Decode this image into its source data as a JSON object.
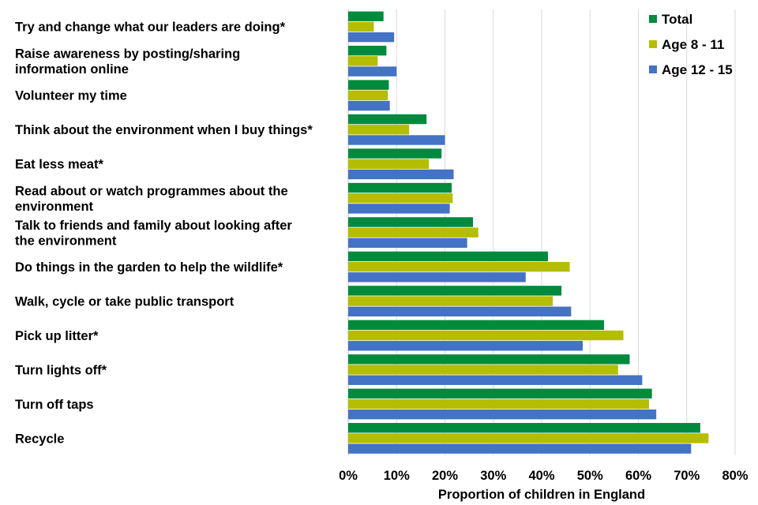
{
  "chart_data": {
    "type": "bar",
    "orientation": "horizontal",
    "title": "",
    "xlabel": "Proportion of children in England",
    "ylabel": "",
    "xlim": [
      0,
      80
    ],
    "x_ticks": [
      "0%",
      "10%",
      "20%",
      "30%",
      "40%",
      "50%",
      "60%",
      "70%",
      "80%"
    ],
    "grid": true,
    "legend_position": "top-right",
    "categories": [
      [
        "Try and change what our leaders are doing*"
      ],
      [
        "Raise awareness by posting/sharing",
        "information online"
      ],
      [
        "Volunteer my time"
      ],
      [
        "Think about the environment when I buy things*"
      ],
      [
        "Eat less meat*"
      ],
      [
        "Read about or watch programmes about the",
        "environment"
      ],
      [
        "Talk to friends and family about looking after",
        "the environment"
      ],
      [
        "Do things in the garden to help the wildlife*"
      ],
      [
        "Walk, cycle or take public transport"
      ],
      [
        "Pick up litter*"
      ],
      [
        "Turn lights off*"
      ],
      [
        "Turn off taps"
      ],
      [
        "Recycle"
      ]
    ],
    "series": [
      {
        "name": "Total",
        "color": "#008a3e",
        "values": [
          7.3,
          7.9,
          8.4,
          16.2,
          19.3,
          21.4,
          25.8,
          41.3,
          44.1,
          52.9,
          58.2,
          62.8,
          72.8
        ]
      },
      {
        "name": "Age 8 - 11",
        "color": "#b5bd00",
        "values": [
          5.3,
          6.1,
          8.2,
          12.6,
          16.7,
          21.6,
          26.9,
          45.8,
          42.3,
          56.9,
          55.8,
          62.2,
          74.5
        ]
      },
      {
        "name": "Age 12 - 15",
        "color": "#4472c4",
        "values": [
          9.5,
          10.0,
          8.6,
          20.0,
          21.8,
          21.0,
          24.6,
          36.7,
          46.1,
          48.5,
          60.8,
          63.7,
          70.9
        ]
      }
    ]
  }
}
